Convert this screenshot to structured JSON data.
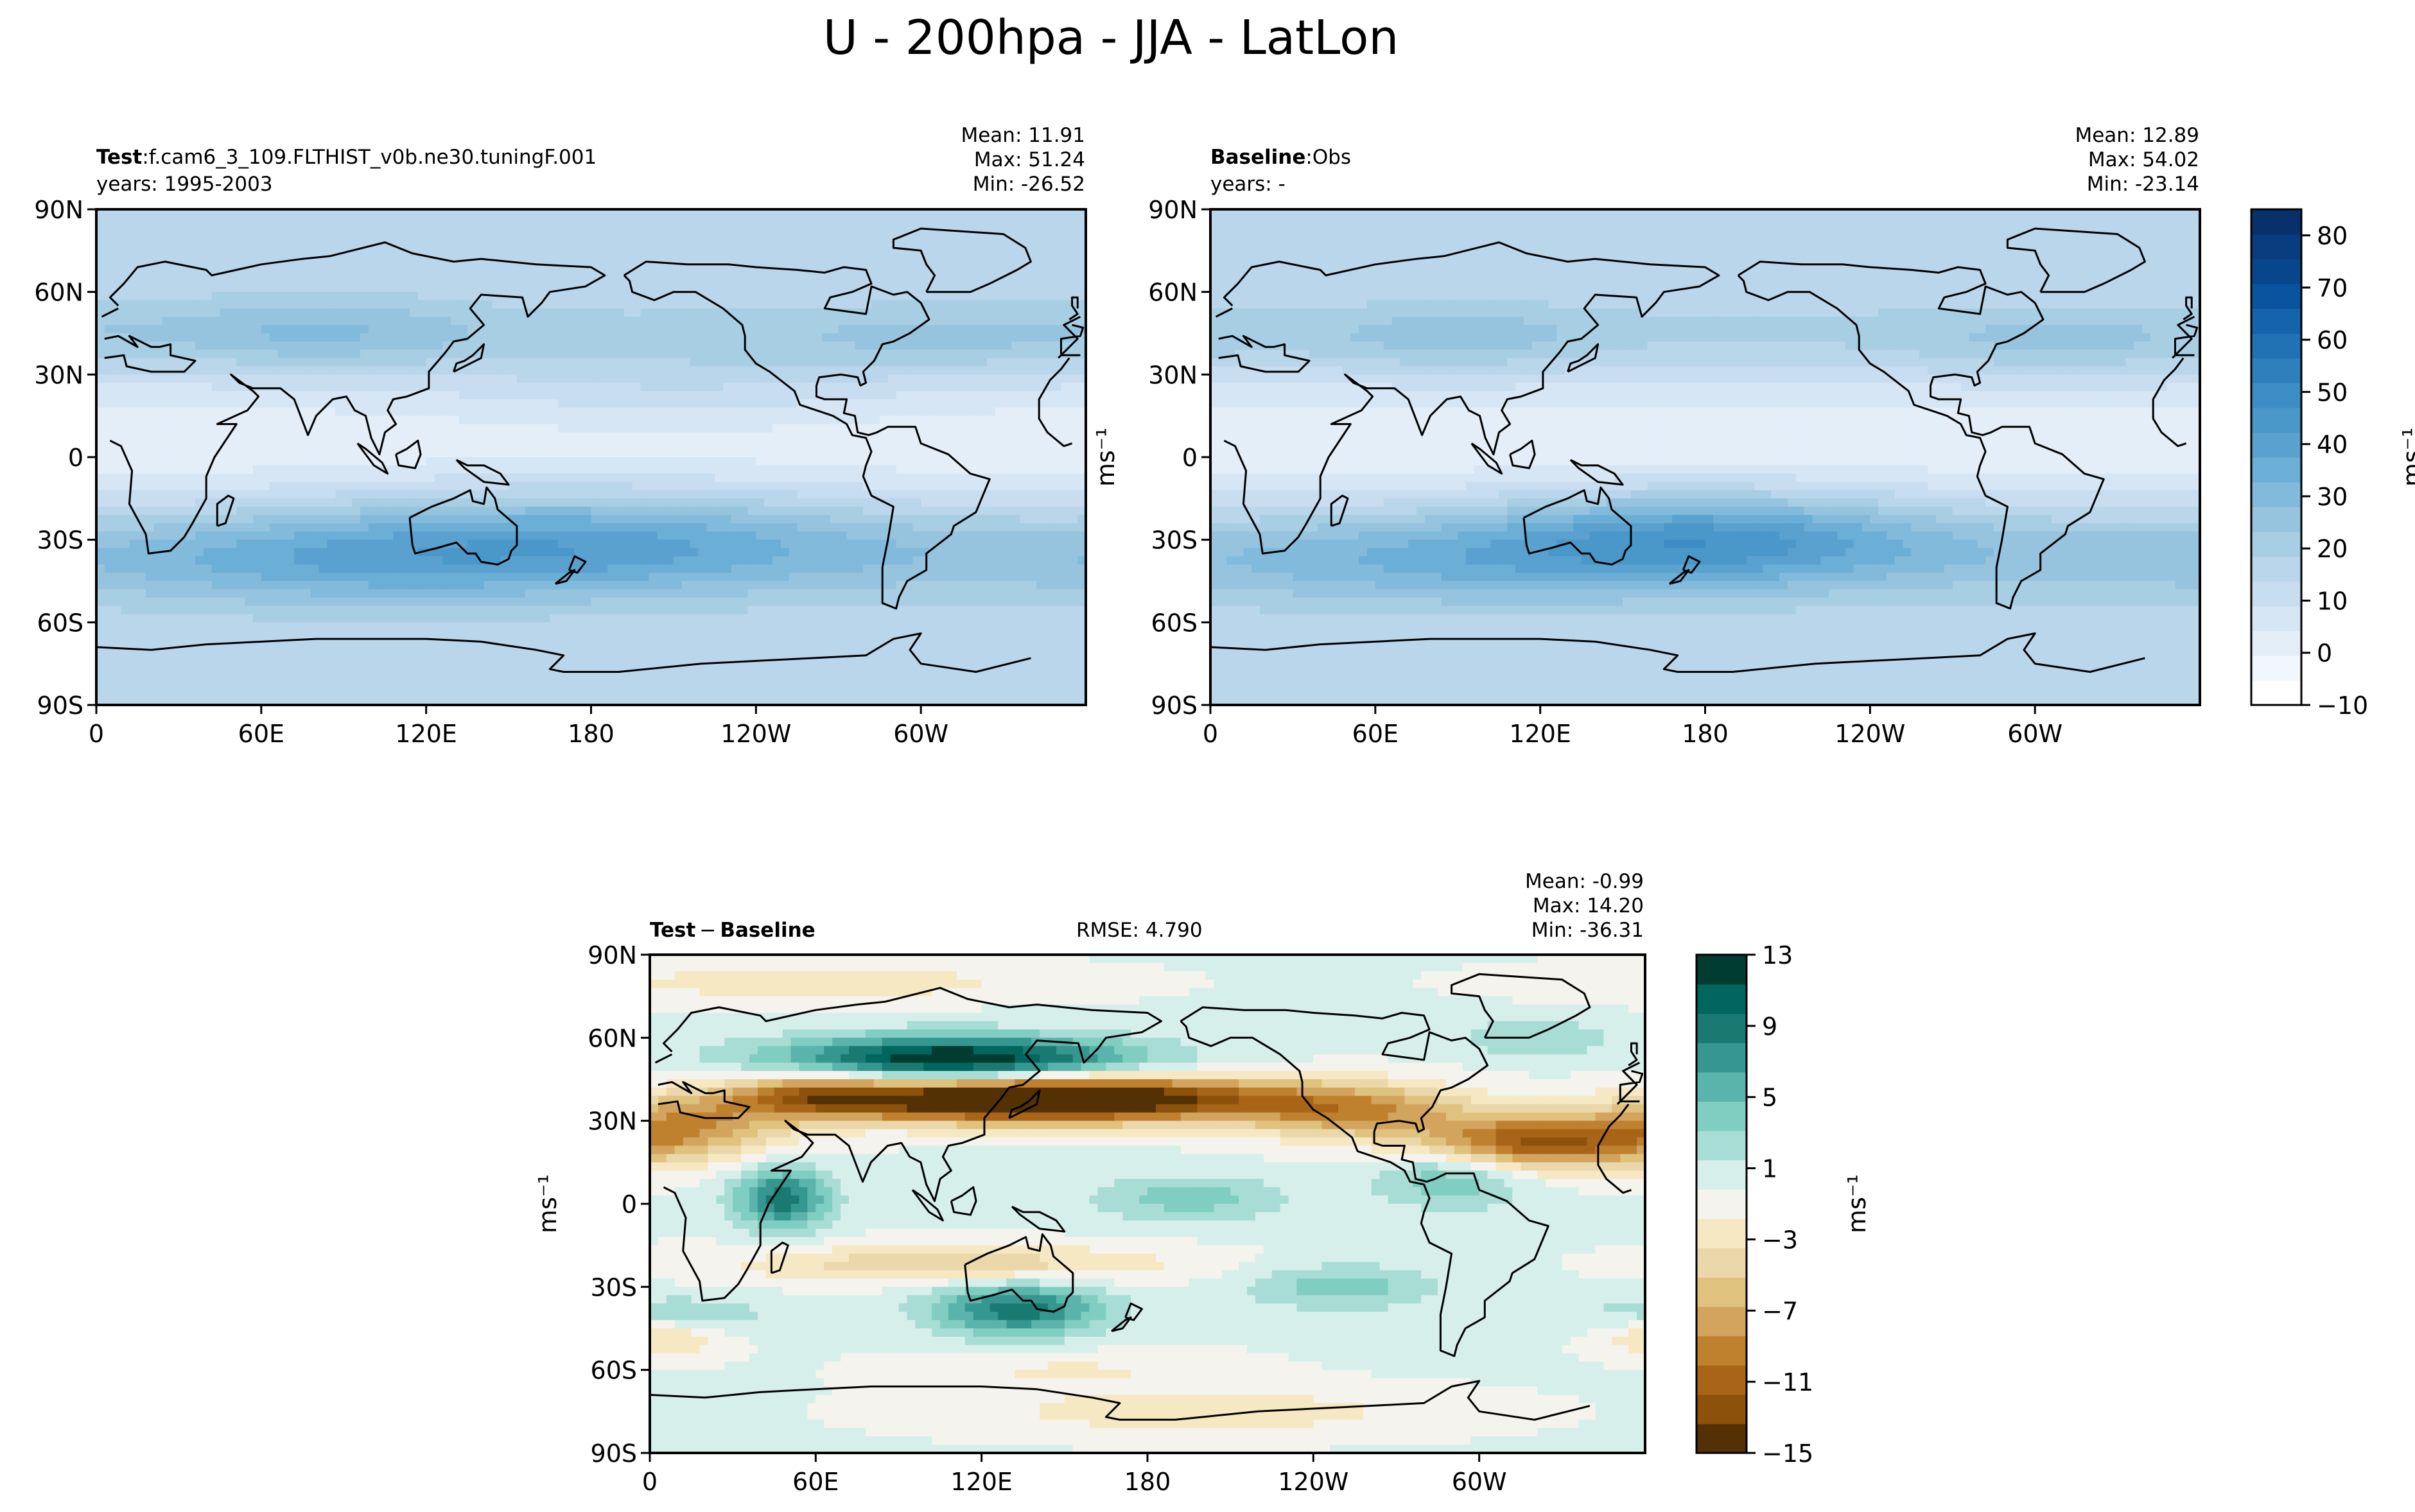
{
  "figure": {
    "title": "U - 200hpa - JJA - LatLon"
  },
  "palettes": {
    "blues": [
      "#ffffff",
      "#f1f7fd",
      "#e3eef9",
      "#d6e6f4",
      "#c9ddf0",
      "#b9d6ea",
      "#a8cee4",
      "#96c4de",
      "#82badb",
      "#6baed6",
      "#5aa1cf",
      "#4a98c9",
      "#3d8dc4",
      "#2f7fbc",
      "#2171b5",
      "#1563aa",
      "#0a539e",
      "#08468b",
      "#083d7f",
      "#08306b"
    ],
    "brbg": [
      "#543005",
      "#8c510a",
      "#a86518",
      "#bf812d",
      "#d2a45e",
      "#dfc27d",
      "#ead7aa",
      "#f6e8c3",
      "#f4f3ed",
      "#d7efeb",
      "#a8ddd5",
      "#80cdc1",
      "#5ab4ac",
      "#35978f",
      "#1a7a72",
      "#01665e",
      "#003c30"
    ]
  },
  "chart_data": [
    {
      "id": "test",
      "type": "heatmap",
      "subtype": "filled-contour-map",
      "label_bold": "Test",
      "label_sep": ":",
      "label_rest": "f.cam6_3_109.FLTHIST_v0b.ne30.tuningF.001",
      "years": "years: 1995-2003",
      "stats": {
        "mean": "Mean: 11.91",
        "max": "Max: 51.24",
        "min": "Min: -26.52"
      },
      "field_stats": {
        "mean": 11.91,
        "max": 51.24,
        "min": -26.52
      },
      "xticks": [
        "0",
        "60E",
        "120E",
        "180",
        "120W",
        "60W"
      ],
      "yticks": [
        "90N",
        "60N",
        "30N",
        "0",
        "30S",
        "60S",
        "90S"
      ],
      "xlim": [
        0,
        360
      ],
      "ylim": [
        -90,
        90
      ],
      "palette": "blues",
      "vmin": -10,
      "vmax": 85,
      "field_anomalies": [
        {
          "lat": -28,
          "lon": 175,
          "dlat": 14,
          "dlon": 70,
          "amp": 16
        },
        {
          "lat": -40,
          "lon": 90,
          "dlat": 12,
          "dlon": 60,
          "amp": 9
        },
        {
          "lat": 45,
          "lon": 80,
          "dlat": 10,
          "dlon": 40,
          "amp": 10
        },
        {
          "lat": 42,
          "lon": 310,
          "dlat": 9,
          "dlon": 45,
          "amp": 6
        },
        {
          "lat": 25,
          "lon": 210,
          "dlat": 12,
          "dlon": 60,
          "amp": 6
        }
      ]
    },
    {
      "id": "baseline",
      "type": "heatmap",
      "subtype": "filled-contour-map",
      "label_bold": "Baseline",
      "label_sep": ":",
      "label_rest": "Obs",
      "years": "years: -",
      "stats": {
        "mean": "Mean: 12.89",
        "max": "Max: 54.02",
        "min": "Min: -23.14"
      },
      "field_stats": {
        "mean": 12.89,
        "max": 54.02,
        "min": -23.14
      },
      "xticks": [
        "0",
        "60E",
        "120E",
        "180",
        "120W",
        "60W"
      ],
      "yticks": [
        "90N",
        "60N",
        "30N",
        "0",
        "30S",
        "60S",
        "90S"
      ],
      "xlim": [
        0,
        360
      ],
      "ylim": [
        -90,
        90
      ],
      "palette": "blues",
      "vmin": -10,
      "vmax": 85,
      "field_anomalies": [
        {
          "lat": -28,
          "lon": 180,
          "dlat": 12,
          "dlon": 55,
          "amp": 22
        },
        {
          "lat": -40,
          "lon": 90,
          "dlat": 12,
          "dlon": 60,
          "amp": 8
        },
        {
          "lat": 42,
          "lon": 90,
          "dlat": 9,
          "dlon": 35,
          "amp": 8
        },
        {
          "lat": 40,
          "lon": 310,
          "dlat": 9,
          "dlon": 40,
          "amp": 7
        }
      ]
    },
    {
      "id": "diff",
      "type": "heatmap",
      "subtype": "filled-contour-map",
      "label_bold": "Test",
      "label_sep": "−",
      "label_rest": "Baseline",
      "rmse": "RMSE: 4.790",
      "stats": {
        "mean": "Mean: -0.99",
        "max": "Max: 14.20",
        "min": "Min: -36.31"
      },
      "field_stats": {
        "mean": -0.99,
        "max": 14.2,
        "min": -36.31
      },
      "xticks": [
        "0",
        "60E",
        "120E",
        "180",
        "120W",
        "60W"
      ],
      "yticks": [
        "90N",
        "60N",
        "30N",
        "0",
        "30S",
        "60S",
        "90S"
      ],
      "xlim": [
        0,
        360
      ],
      "ylim": [
        -90,
        90
      ],
      "ylabel": "ms⁻¹",
      "palette": "brbg",
      "vmin": -15,
      "vmax": 13,
      "features": [
        {
          "lat": 52,
          "lon": 110,
          "dlat": 6,
          "dlon": 45,
          "amp": 14
        },
        {
          "lat": 38,
          "lon": 140,
          "dlat": 6,
          "dlon": 60,
          "amp": -20
        },
        {
          "lat": 40,
          "lon": 60,
          "dlat": 6,
          "dlon": 20,
          "amp": -6
        },
        {
          "lat": 28,
          "lon": 15,
          "dlat": 8,
          "dlon": 25,
          "amp": -7
        },
        {
          "lat": 33,
          "lon": 255,
          "dlat": 7,
          "dlon": 30,
          "amp": -7
        },
        {
          "lat": 22,
          "lon": 320,
          "dlat": 7,
          "dlon": 30,
          "amp": -12
        },
        {
          "lat": 2,
          "lon": 48,
          "dlat": 8,
          "dlon": 12,
          "amp": 9
        },
        {
          "lat": 2,
          "lon": 195,
          "dlat": 6,
          "dlon": 25,
          "amp": 4
        },
        {
          "lat": 10,
          "lon": 290,
          "dlat": 8,
          "dlon": 20,
          "amp": 5
        },
        {
          "lat": -38,
          "lon": 133,
          "dlat": 7,
          "dlon": 22,
          "amp": 9
        },
        {
          "lat": -22,
          "lon": 110,
          "dlat": 5,
          "dlon": 55,
          "amp": -5
        },
        {
          "lat": -30,
          "lon": 250,
          "dlat": 6,
          "dlon": 25,
          "amp": 4
        },
        {
          "lat": -40,
          "lon": 10,
          "dlat": 5,
          "dlon": 25,
          "amp": 3
        },
        {
          "lat": -48,
          "lon": 5,
          "dlat": 5,
          "dlon": 15,
          "amp": -4
        },
        {
          "lat": -75,
          "lon": 200,
          "dlat": 6,
          "dlon": 60,
          "amp": -3
        },
        {
          "lat": 80,
          "lon": 60,
          "dlat": 5,
          "dlon": 60,
          "amp": -3
        },
        {
          "lat": -60,
          "lon": 150,
          "dlat": 5,
          "dlon": 40,
          "amp": -2
        },
        {
          "lat": 60,
          "lon": 320,
          "dlat": 5,
          "dlon": 20,
          "amp": 3
        }
      ]
    }
  ],
  "colorbars": [
    {
      "id": "colorbar-abs",
      "palette": "blues",
      "vmin": -10,
      "vmax": 85,
      "tick_values": [
        -10,
        0,
        10,
        20,
        30,
        40,
        50,
        60,
        70,
        80
      ],
      "tick_labels": [
        "−10",
        "0",
        "10",
        "20",
        "30",
        "40",
        "50",
        "60",
        "70",
        "80"
      ],
      "unit": "ms⁻¹"
    },
    {
      "id": "colorbar-diff",
      "palette": "brbg",
      "vmin": -15,
      "vmax": 13,
      "tick_values": [
        -15,
        -11,
        -7,
        -3,
        1,
        5,
        9,
        13
      ],
      "tick_labels": [
        "−15",
        "−11",
        "−7",
        "−3",
        "1",
        "5",
        "9",
        "13"
      ],
      "unit": "ms⁻¹"
    }
  ],
  "shared_ylabel": "ms⁻¹"
}
